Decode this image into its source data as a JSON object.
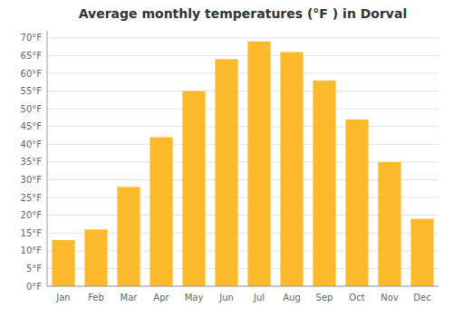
{
  "chart_data": {
    "type": "bar",
    "title": "Average monthly temperatures (°F ) in Dorval",
    "categories": [
      "Jan",
      "Feb",
      "Mar",
      "Apr",
      "May",
      "Jun",
      "Jul",
      "Aug",
      "Sep",
      "Oct",
      "Nov",
      "Dec"
    ],
    "values": [
      13,
      16,
      28,
      42,
      55,
      64,
      69,
      66,
      58,
      47,
      35,
      19
    ],
    "color": "#FDB92C",
    "ylim": [
      0,
      72
    ],
    "yticks": [
      {
        "value": 0,
        "label": "0°F"
      },
      {
        "value": 5,
        "label": "5°F"
      },
      {
        "value": 10,
        "label": "10°F"
      },
      {
        "value": 15,
        "label": "15°F"
      },
      {
        "value": 20,
        "label": "20°F"
      },
      {
        "value": 25,
        "label": "25°F"
      },
      {
        "value": 30,
        "label": "30°F"
      },
      {
        "value": 35,
        "label": "35°F"
      },
      {
        "value": 40,
        "label": "40°F"
      },
      {
        "value": 45,
        "label": "45°F"
      },
      {
        "value": 50,
        "label": "50°F"
      },
      {
        "value": 55,
        "label": "55°F"
      },
      {
        "value": 60,
        "label": "60°F"
      },
      {
        "value": 65,
        "label": "65°F"
      },
      {
        "value": 70,
        "label": "70°F"
      }
    ],
    "grid": true
  }
}
